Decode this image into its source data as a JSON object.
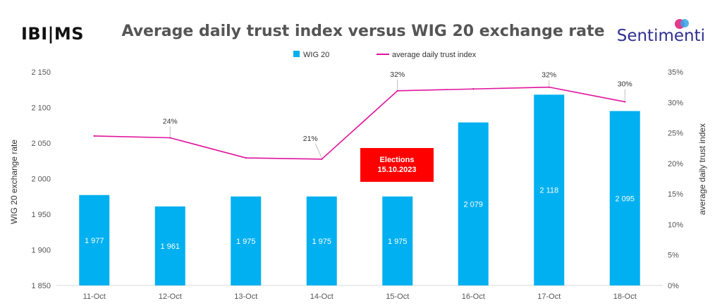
{
  "logo_left": "IBI|MS",
  "logo_right": "Sentimenti",
  "chart_data": {
    "type": "bar",
    "title": "Average daily trust index versus WIG 20 exchange rate",
    "categories": [
      "11-Oct",
      "12-Oct",
      "13-Oct",
      "14-Oct",
      "15-Oct",
      "16-Oct",
      "17-Oct",
      "18-Oct"
    ],
    "series": [
      {
        "name": "WIG 20",
        "type": "bar",
        "axis": "left",
        "color": "#00b0f0",
        "values": [
          1977,
          1961,
          1975,
          1975,
          1975,
          2079,
          2118,
          2095
        ],
        "labels": [
          "1 977",
          "1 961",
          "1 975",
          "1 975",
          "1 975",
          "2 079",
          "2 118",
          "2 095"
        ]
      },
      {
        "name": "average daily trust index",
        "type": "line",
        "axis": "right",
        "color": "#e0149c",
        "values": [
          24.5,
          24.2,
          20.9,
          20.7,
          31.9,
          32.2,
          32.5,
          30.1
        ],
        "labels": [
          "",
          "24%",
          "",
          "21%",
          "32%",
          "",
          "32%",
          "30%"
        ]
      }
    ],
    "ylabel": "WIG 20 exchange rate",
    "y2label": "average daily trust index",
    "ylim": [
      1850,
      2150
    ],
    "y2lim": [
      0,
      35
    ],
    "yticks": [
      "1 850",
      "1 900",
      "1 950",
      "2 000",
      "2 050",
      "2 100",
      "2 150"
    ],
    "y2ticks": [
      "0%",
      "5%",
      "10%",
      "15%",
      "20%",
      "25%",
      "30%",
      "35%"
    ],
    "legend_position": "top-center",
    "grid": false,
    "annotation": {
      "line1": "Elections",
      "line2": "15.10.2023",
      "color": "#ff0000",
      "category": "15-Oct"
    }
  }
}
